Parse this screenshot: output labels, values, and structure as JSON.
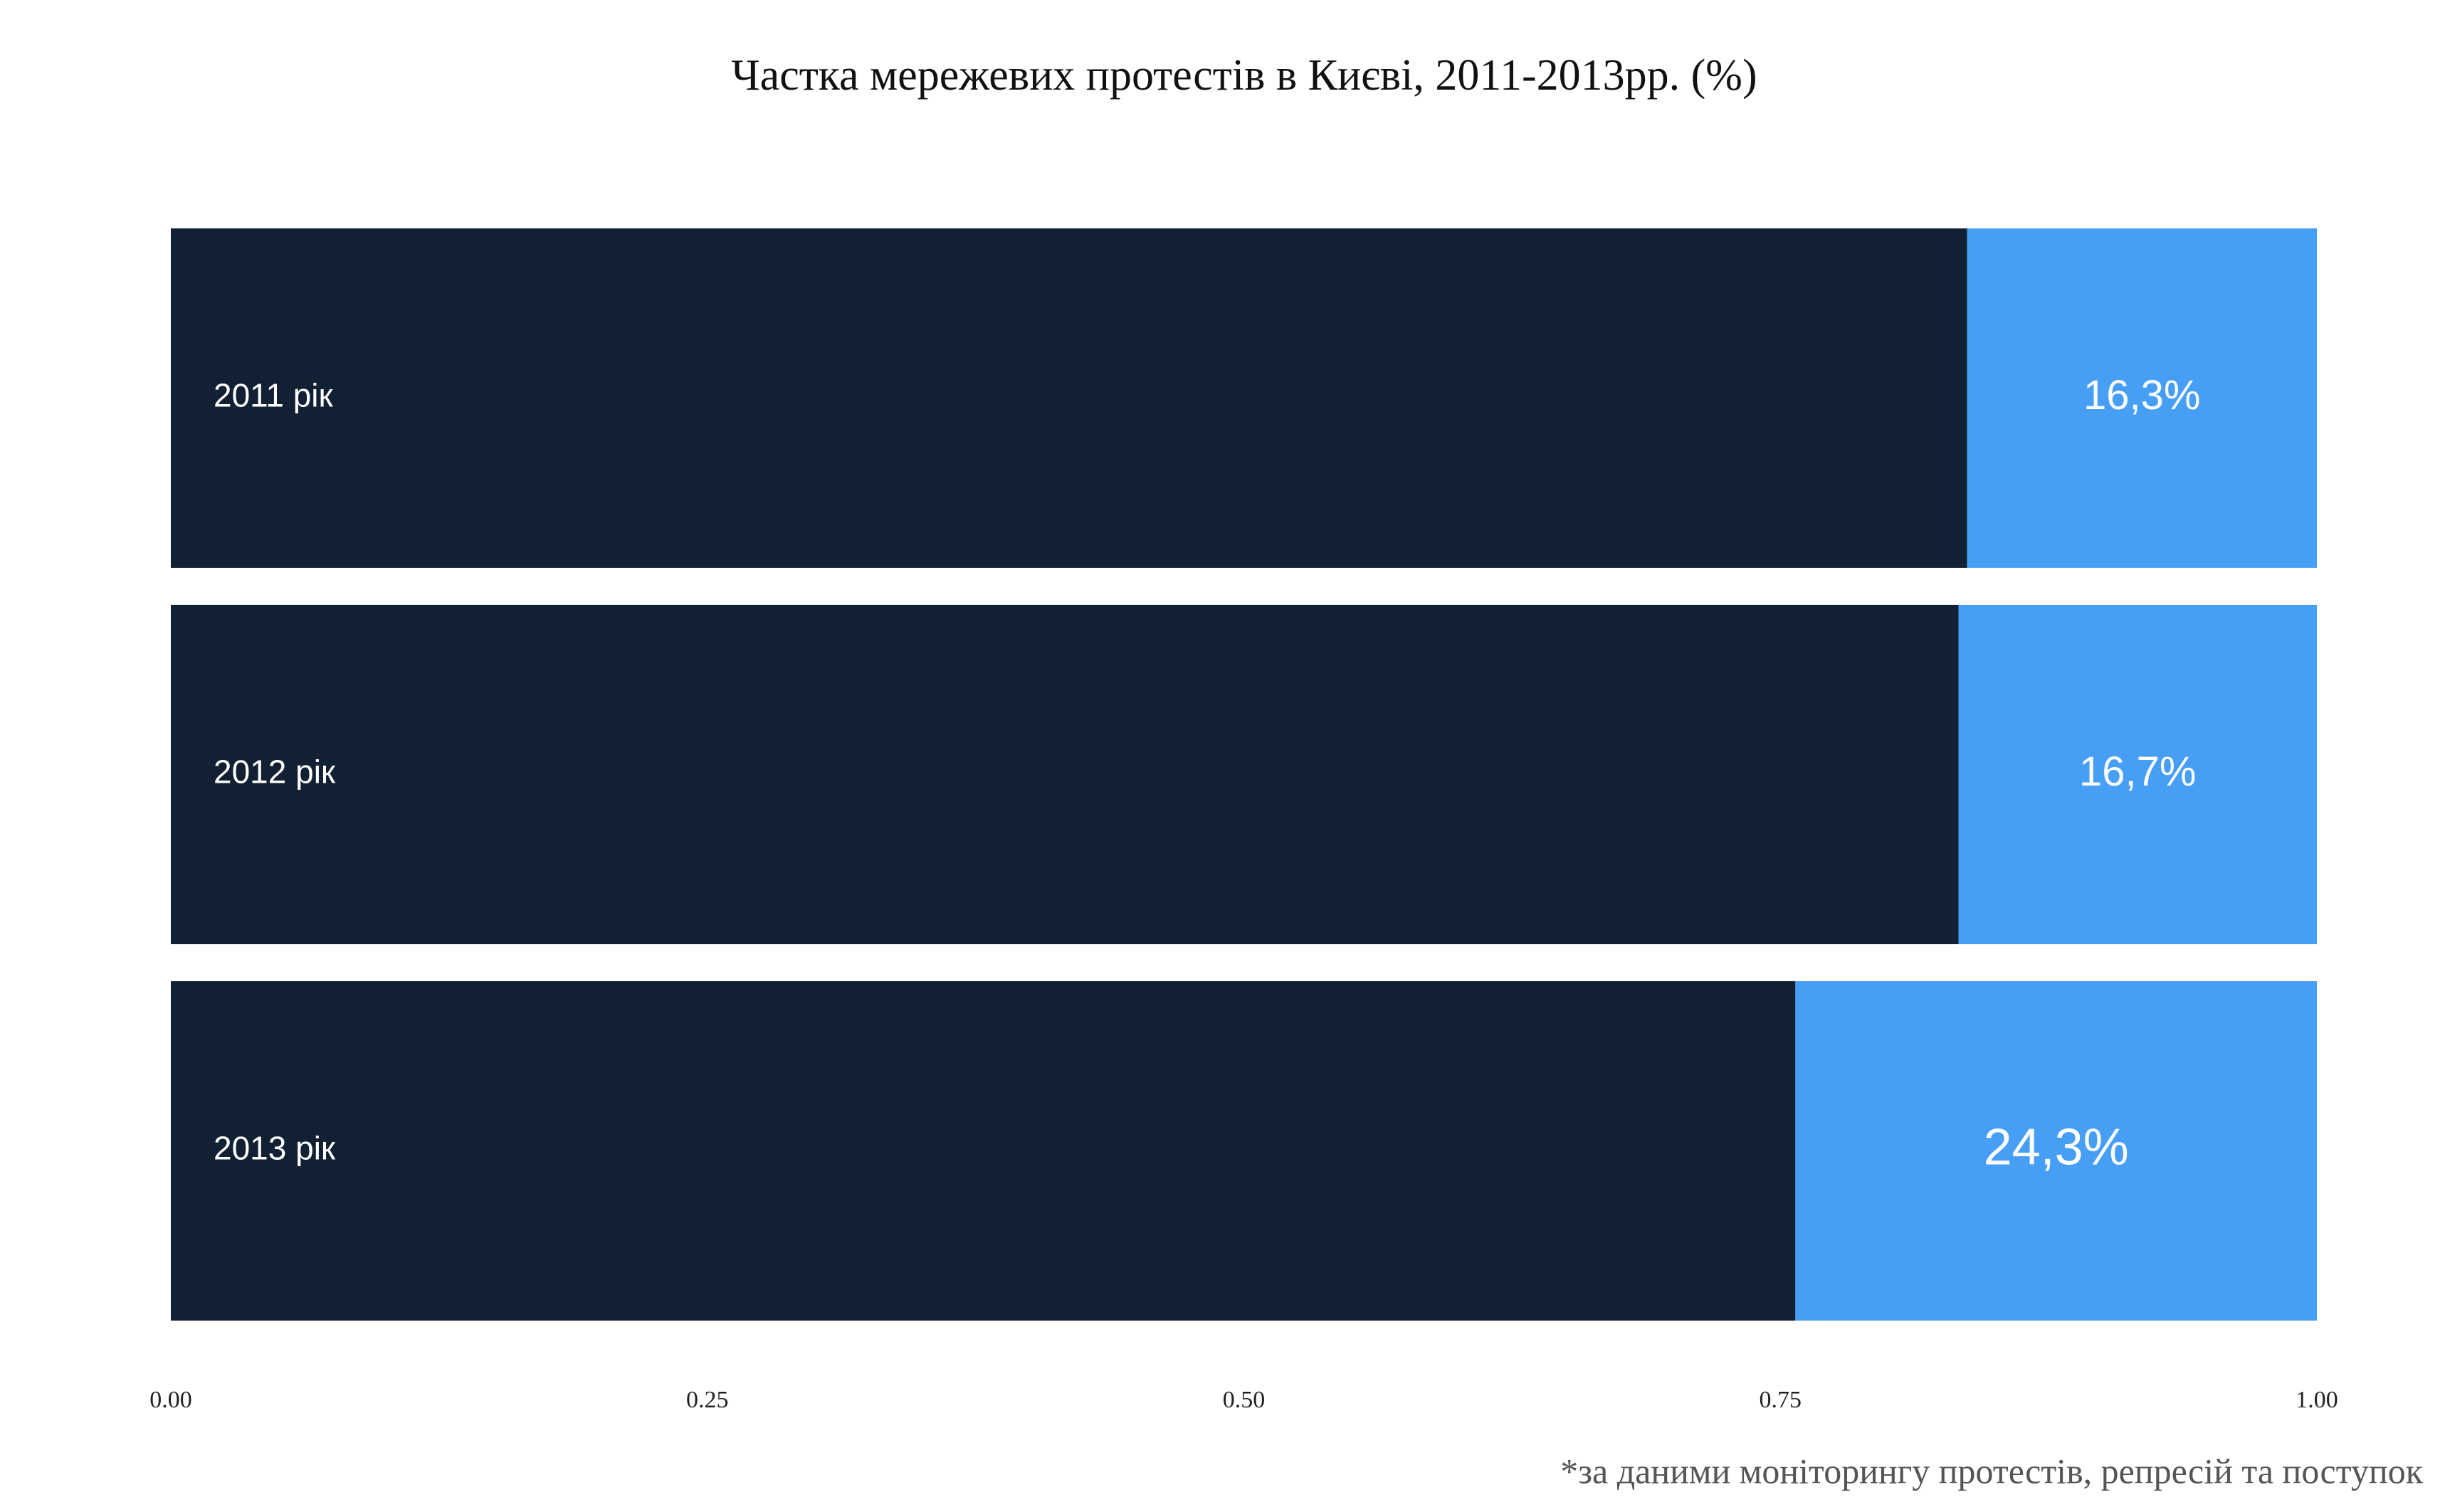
{
  "chart_data": {
    "type": "stacked-bar-horizontal",
    "title": "Частка мережевих протестів в Києві, 2011-2013рр. (%)",
    "categories": [
      "2011 рік",
      "2012 рік",
      "2013 рік"
    ],
    "series": [
      {
        "color": "#112033",
        "values": [
          0.837,
          0.833,
          0.757
        ]
      },
      {
        "color": "#479ef5",
        "values": [
          0.163,
          0.167,
          0.243
        ],
        "value_labels": [
          "16,3%",
          "16,7%",
          "24,3%"
        ]
      }
    ],
    "xlim": [
      0,
      1
    ],
    "xticks": [
      {
        "value": 0,
        "label": "0.00"
      },
      {
        "value": 0.25,
        "label": "0.25"
      },
      {
        "value": 0.5,
        "label": "0.50"
      },
      {
        "value": 0.75,
        "label": "0.75"
      },
      {
        "value": 1,
        "label": "1.00"
      }
    ],
    "note": "*за даними моніторингу протестів, репресій та поступок"
  }
}
